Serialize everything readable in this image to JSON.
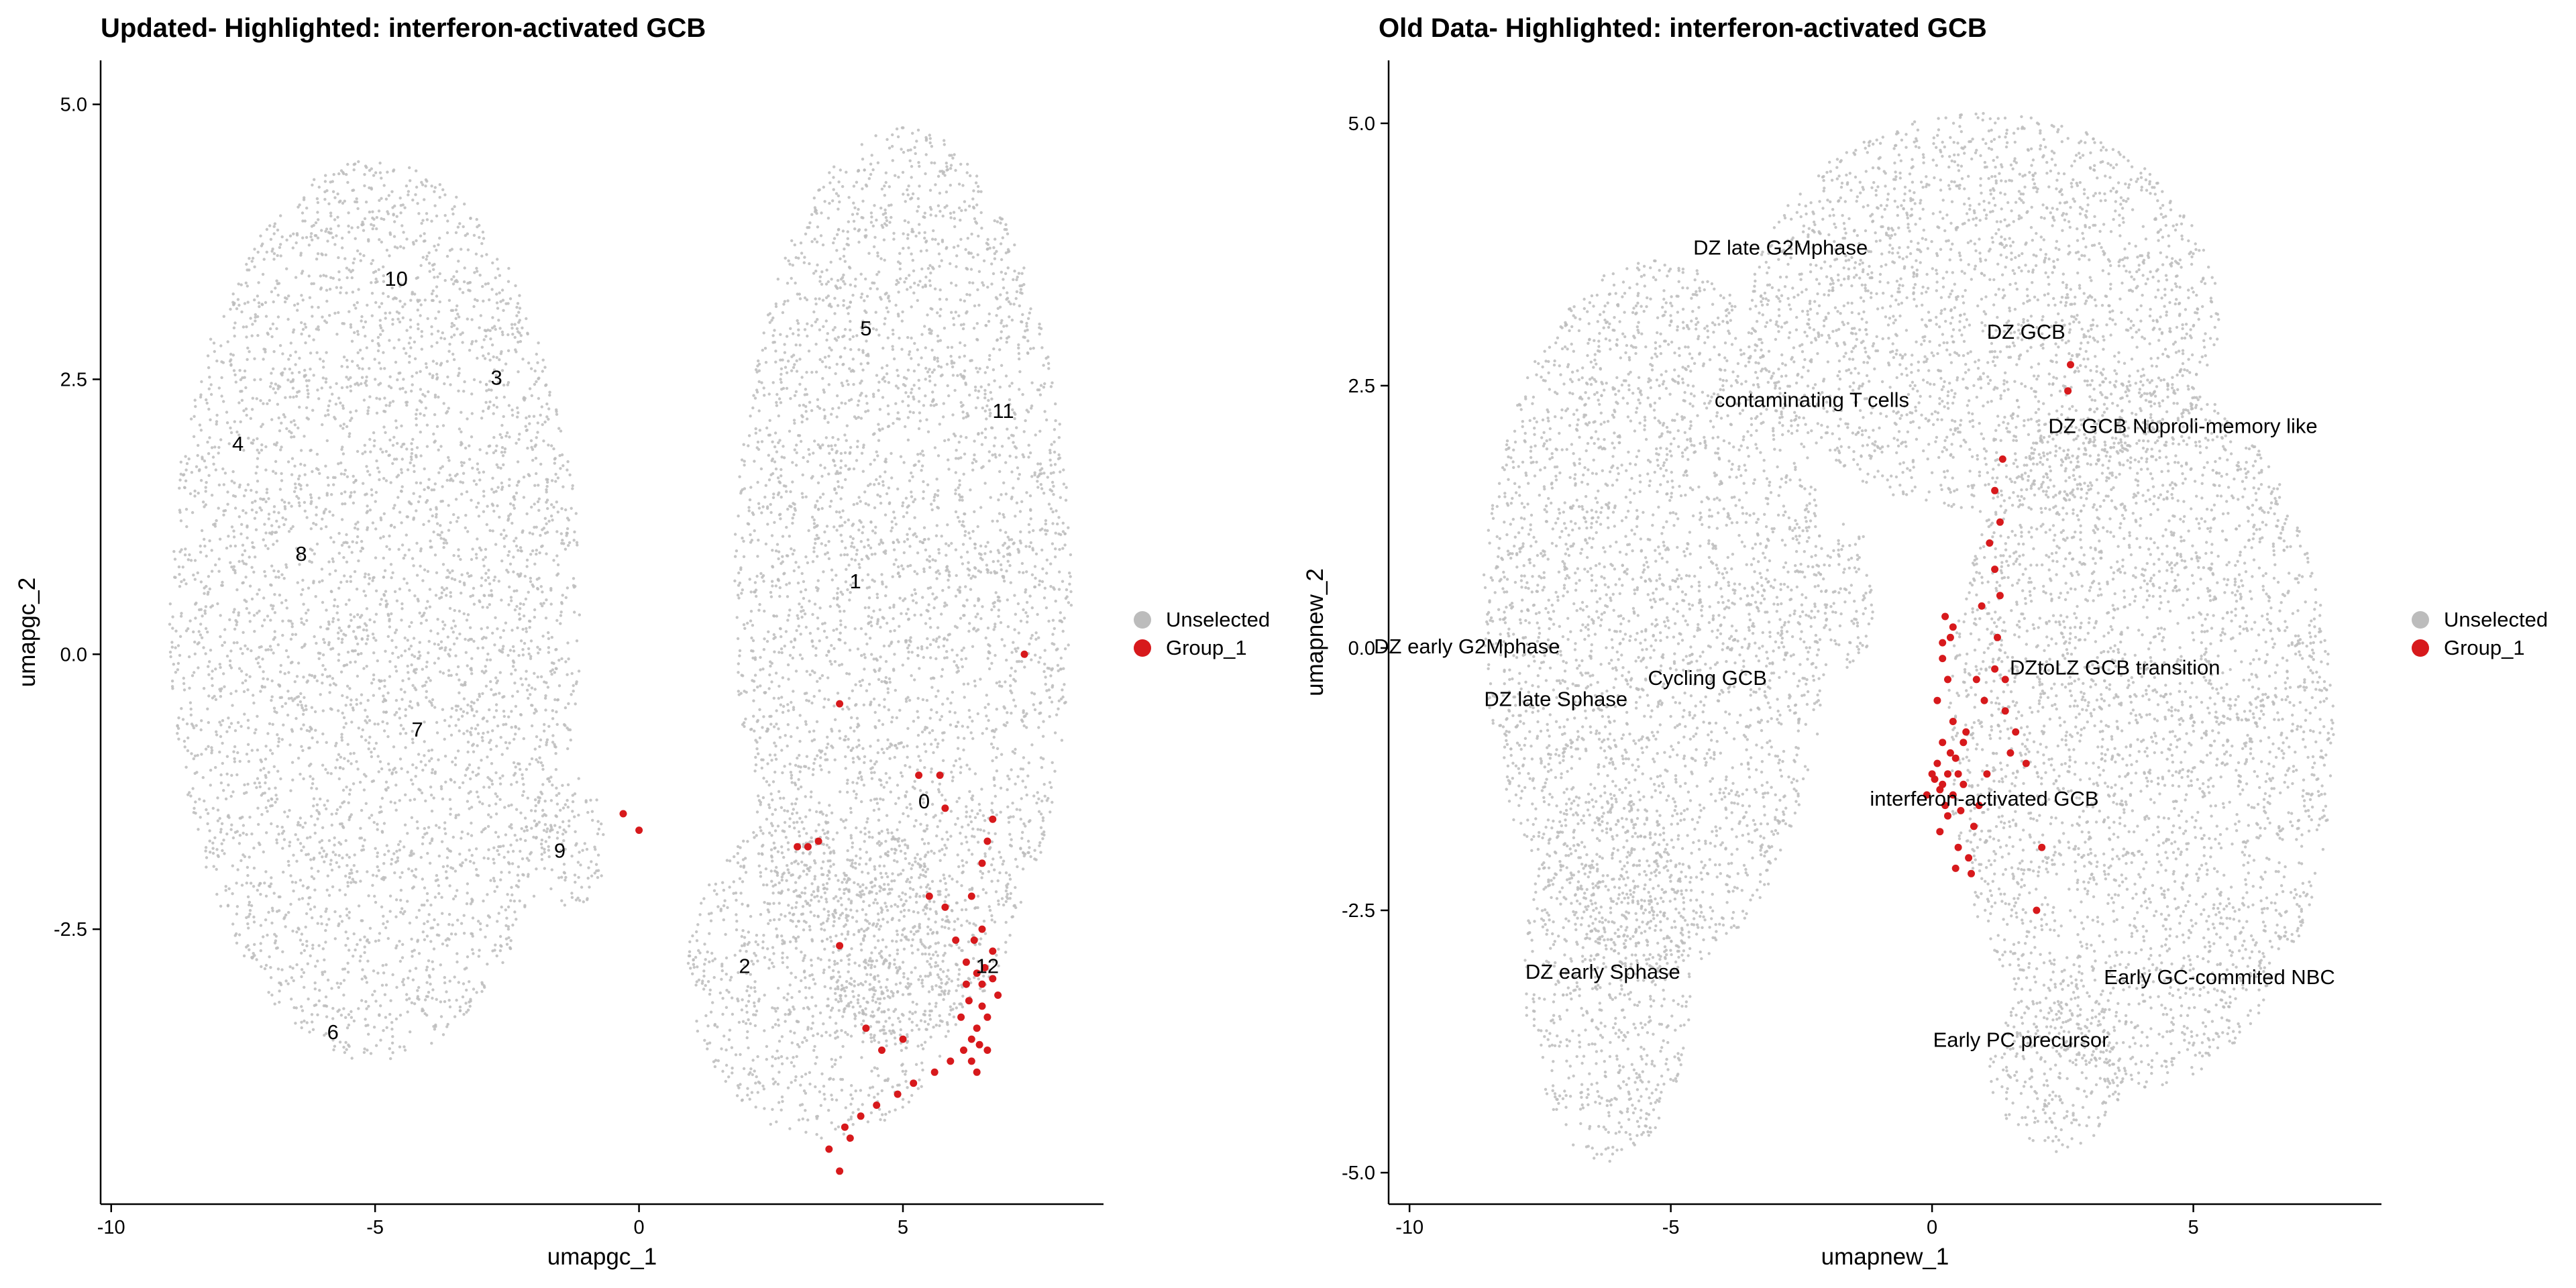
{
  "colors": {
    "unselected": "#bcbcbc",
    "group": "#d7191c",
    "axis": "#000000"
  },
  "chart_data": [
    {
      "type": "scatter",
      "title": "Updated- Highlighted: interferon-activated GCB",
      "xlabel": "umapgc_1",
      "ylabel": "umapgc_2",
      "xlim": [
        -10.2,
        8.8
      ],
      "ylim": [
        -5.0,
        5.4
      ],
      "xticks": [
        -10,
        -5,
        0,
        5
      ],
      "yticks": [
        -2.5,
        0.0,
        2.5,
        5.0
      ],
      "xtick_labels": [
        "-10",
        "-5",
        "0",
        "5"
      ],
      "ytick_labels": [
        "-2.5",
        "0.0",
        "2.5",
        "5.0"
      ],
      "legend": {
        "position": "right",
        "entries": [
          "Unselected",
          "Group_1"
        ]
      },
      "series": [
        {
          "name": "Unselected",
          "color": "#bcbcbc",
          "regions": [
            {
              "center": [
                -5.0,
                0.4
              ],
              "radius": [
                3.9,
                4.1
              ]
            },
            {
              "center": [
                5.0,
                0.6
              ],
              "radius": [
                3.2,
                4.2
              ]
            },
            {
              "center": [
                3.5,
                -2.9
              ],
              "radius": [
                2.6,
                1.5
              ]
            },
            {
              "center": [
                -1.3,
                -1.7
              ],
              "radius": [
                0.7,
                0.6
              ]
            }
          ]
        },
        {
          "name": "Group_1",
          "color": "#d7191c",
          "points": [
            [
              6.4,
              -2.9
            ],
            [
              6.5,
              -3.2
            ],
            [
              6.3,
              -3.5
            ],
            [
              6.6,
              -3.6
            ],
            [
              6.2,
              -3.0
            ],
            [
              6.7,
              -2.7
            ],
            [
              6.4,
              -3.8
            ],
            [
              6.1,
              -3.3
            ],
            [
              6.8,
              -3.1
            ],
            [
              6.5,
              -2.5
            ],
            [
              6.0,
              -2.6
            ],
            [
              6.3,
              -2.2
            ],
            [
              5.8,
              -2.3
            ],
            [
              5.5,
              -2.2
            ],
            [
              5.9,
              -3.7
            ],
            [
              5.6,
              -3.8
            ],
            [
              5.2,
              -3.9
            ],
            [
              4.9,
              -4.0
            ],
            [
              4.5,
              -4.1
            ],
            [
              4.2,
              -4.2
            ],
            [
              3.9,
              -4.3
            ],
            [
              3.6,
              -4.5
            ],
            [
              3.8,
              -4.7
            ],
            [
              4.0,
              -4.4
            ],
            [
              4.6,
              -3.6
            ],
            [
              4.3,
              -3.4
            ],
            [
              5.0,
              -3.5
            ],
            [
              6.6,
              -1.7
            ],
            [
              6.7,
              -1.5
            ],
            [
              6.5,
              -1.9
            ],
            [
              5.7,
              -1.1
            ],
            [
              5.3,
              -1.1
            ],
            [
              5.8,
              -1.4
            ],
            [
              3.0,
              -1.75
            ],
            [
              3.2,
              -1.75
            ],
            [
              3.4,
              -1.7
            ],
            [
              3.8,
              -2.65
            ],
            [
              3.8,
              -0.45
            ],
            [
              7.3,
              0.0
            ],
            [
              -0.3,
              -1.45
            ],
            [
              0.0,
              -1.6
            ],
            [
              6.4,
              -3.4
            ],
            [
              6.5,
              -3.0
            ],
            [
              6.3,
              -3.7
            ],
            [
              6.6,
              -3.3
            ],
            [
              6.2,
              -2.8
            ],
            [
              6.45,
              -3.55
            ],
            [
              6.35,
              -2.6
            ],
            [
              6.55,
              -2.85
            ],
            [
              6.25,
              -3.15
            ],
            [
              6.7,
              -2.95
            ],
            [
              6.15,
              -3.6
            ]
          ]
        }
      ],
      "annotations": [
        {
          "text": "0",
          "x": 5.4,
          "y": -1.35
        },
        {
          "text": "1",
          "x": 4.1,
          "y": 0.65
        },
        {
          "text": "2",
          "x": 2.0,
          "y": -2.85
        },
        {
          "text": "3",
          "x": -2.7,
          "y": 2.5
        },
        {
          "text": "4",
          "x": -7.6,
          "y": 1.9
        },
        {
          "text": "5",
          "x": 4.3,
          "y": 2.95
        },
        {
          "text": "6",
          "x": -5.8,
          "y": -3.45
        },
        {
          "text": "7",
          "x": -4.2,
          "y": -0.7
        },
        {
          "text": "8",
          "x": -6.4,
          "y": 0.9
        },
        {
          "text": "9",
          "x": -1.5,
          "y": -1.8
        },
        {
          "text": "10",
          "x": -4.6,
          "y": 3.4
        },
        {
          "text": "11",
          "x": 6.9,
          "y": 2.2
        },
        {
          "text": "12",
          "x": 6.6,
          "y": -2.85
        }
      ]
    },
    {
      "type": "scatter",
      "title": "Old Data- Highlighted: interferon-activated GCB",
      "xlabel": "umapnew_1",
      "ylabel": "umapnew_2",
      "xlim": [
        -10.4,
        8.6
      ],
      "ylim": [
        -5.3,
        5.6
      ],
      "xticks": [
        -10,
        -5,
        0,
        5
      ],
      "yticks": [
        -5.0,
        -2.5,
        0.0,
        2.5,
        5.0
      ],
      "xtick_labels": [
        "-10",
        "-5",
        "0",
        "5"
      ],
      "ytick_labels": [
        "-5.0",
        "-2.5",
        "0.0",
        "2.5",
        "5.0"
      ],
      "legend": {
        "position": "right",
        "entries": [
          "Unselected",
          "Group_1"
        ]
      },
      "series": [
        {
          "name": "Unselected",
          "color": "#bcbcbc",
          "regions": [
            {
              "center": [
                -5.3,
                0.3
              ],
              "radius": [
                3.3,
                3.4
              ]
            },
            {
              "center": [
                -6.2,
                -3.1
              ],
              "radius": [
                1.6,
                1.8
              ]
            },
            {
              "center": [
                1.0,
                3.2
              ],
              "radius": [
                4.5,
                1.9
              ]
            },
            {
              "center": [
                4.0,
                -0.8
              ],
              "radius": [
                3.7,
                3.4
              ]
            },
            {
              "center": [
                2.4,
                -4.0
              ],
              "radius": [
                1.3,
                0.8
              ]
            },
            {
              "center": [
                -1.6,
                0.5
              ],
              "radius": [
                0.5,
                0.7
              ]
            }
          ]
        },
        {
          "name": "Group_1",
          "color": "#d7191c",
          "points": [
            [
              0.2,
              -1.3
            ],
            [
              0.3,
              -1.2
            ],
            [
              0.4,
              -1.4
            ],
            [
              0.1,
              -1.1
            ],
            [
              0.5,
              -1.2
            ],
            [
              0.25,
              -1.5
            ],
            [
              0.35,
              -1.0
            ],
            [
              0.15,
              -1.35
            ],
            [
              0.45,
              -1.05
            ],
            [
              0.05,
              -1.25
            ],
            [
              0.6,
              -1.3
            ],
            [
              0.3,
              -1.6
            ],
            [
              0.2,
              -0.9
            ],
            [
              0.4,
              -0.7
            ],
            [
              0.1,
              -0.5
            ],
            [
              0.3,
              -0.3
            ],
            [
              0.2,
              -0.1
            ],
            [
              0.35,
              0.1
            ],
            [
              0.25,
              0.3
            ],
            [
              0.6,
              -0.9
            ],
            [
              0.8,
              -1.7
            ],
            [
              0.7,
              -2.0
            ],
            [
              0.5,
              -1.9
            ],
            [
              0.9,
              -1.5
            ],
            [
              1.0,
              -0.5
            ],
            [
              1.2,
              -0.2
            ],
            [
              1.4,
              -0.6
            ],
            [
              1.3,
              0.5
            ],
            [
              1.1,
              1.0
            ],
            [
              1.2,
              1.5
            ],
            [
              1.35,
              1.8
            ],
            [
              1.5,
              -1.0
            ],
            [
              2.1,
              -1.9
            ],
            [
              2.0,
              -2.5
            ],
            [
              2.6,
              2.45
            ],
            [
              2.65,
              2.7
            ],
            [
              -0.1,
              -1.4
            ],
            [
              0.0,
              -1.2
            ],
            [
              0.55,
              -1.55
            ],
            [
              0.65,
              -0.8
            ],
            [
              0.85,
              -0.3
            ],
            [
              1.05,
              -1.2
            ],
            [
              0.15,
              -1.75
            ],
            [
              0.45,
              -2.1
            ],
            [
              0.75,
              -2.15
            ],
            [
              0.4,
              0.2
            ],
            [
              0.2,
              0.05
            ],
            [
              1.25,
              0.1
            ],
            [
              1.4,
              -0.3
            ],
            [
              0.95,
              0.4
            ],
            [
              1.2,
              0.75
            ],
            [
              1.3,
              1.2
            ],
            [
              1.6,
              -0.8
            ],
            [
              1.8,
              -1.1
            ]
          ]
        }
      ],
      "annotations": [
        {
          "text": "DZ late G2Mphase",
          "x": -2.9,
          "y": 3.8
        },
        {
          "text": "DZ GCB",
          "x": 1.8,
          "y": 3.0
        },
        {
          "text": "contaminating T cells",
          "x": -2.3,
          "y": 2.35
        },
        {
          "text": "DZ GCB Noproli-memory like",
          "x": 4.8,
          "y": 2.1
        },
        {
          "text": "DZ early G2Mphase",
          "x": -8.9,
          "y": 0.0
        },
        {
          "text": "Cycling GCB",
          "x": -4.3,
          "y": -0.3
        },
        {
          "text": "DZ late Sphase",
          "x": -7.2,
          "y": -0.5
        },
        {
          "text": "DZtoLZ GCB transition",
          "x": 3.5,
          "y": -0.2
        },
        {
          "text": "interferon-activated GCB",
          "x": 1.0,
          "y": -1.45
        },
        {
          "text": "DZ early  Sphase",
          "x": -6.3,
          "y": -3.1
        },
        {
          "text": "Early GC-commited NBC",
          "x": 5.5,
          "y": -3.15
        },
        {
          "text": "Early PC precursor",
          "x": 1.7,
          "y": -3.75
        }
      ]
    }
  ]
}
